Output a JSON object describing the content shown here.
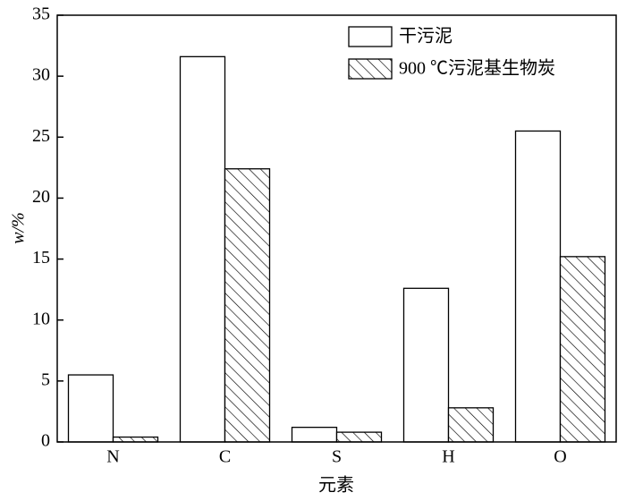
{
  "chart_data": {
    "type": "bar",
    "y_label": "w/%",
    "x_label": "元素",
    "categories": [
      "N",
      "C",
      "S",
      "H",
      "O"
    ],
    "series": [
      {
        "name": "干污泥",
        "color": "#ffffff",
        "hatch": false,
        "values": [
          5.5,
          31.6,
          1.2,
          12.6,
          25.5
        ]
      },
      {
        "name": "900 ℃污泥基生物炭",
        "color": "#ffffff",
        "hatch": true,
        "values": [
          0.4,
          22.4,
          0.8,
          2.8,
          15.2
        ]
      }
    ],
    "ylim": [
      0,
      35
    ],
    "yticks": [
      0,
      5,
      10,
      15,
      20,
      25,
      30,
      35
    ],
    "legend": "upper right"
  }
}
